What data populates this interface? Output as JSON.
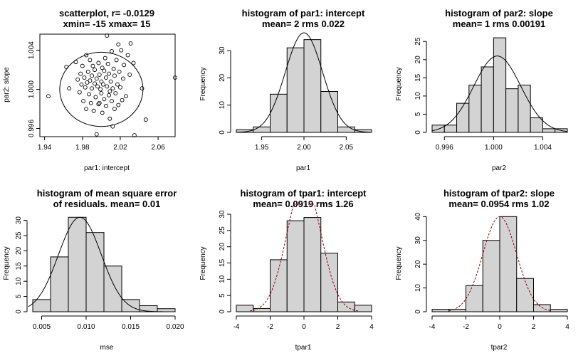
{
  "figure": {
    "panels": [
      {
        "title_lines": [
          "scatterplot, r= -0.0129",
          "xmin= -15  xmax= 15"
        ],
        "xlabel": "par1: intercept",
        "ylabel": "par2: slope"
      },
      {
        "title_lines": [
          "histogram of par1: intercept",
          "mean= 2  rms 0.022"
        ],
        "xlabel": "par1",
        "ylabel": "Frequency"
      },
      {
        "title_lines": [
          "histogram of par2: slope",
          "mean= 1  rms 0.00191"
        ],
        "xlabel": "par2",
        "ylabel": "Frequency"
      },
      {
        "title_lines": [
          "histogram of mean square error",
          "of residuals. mean= 0.01"
        ],
        "xlabel": "mse",
        "ylabel": "Frequency"
      },
      {
        "title_lines": [
          "histogram of tpar1: intercept",
          "mean= 0.0919  rms 1.26"
        ],
        "xlabel": "tpar1",
        "ylabel": "Frequency"
      },
      {
        "title_lines": [
          "histogram of tpar2: slope",
          "mean= 0.0954  rms 1.02"
        ],
        "xlabel": "tpar2",
        "ylabel": "Frequency"
      }
    ]
  },
  "chart_data": [
    {
      "type": "scatter",
      "title": "scatterplot, r= -0.0129\nxmin= -15  xmax= 15",
      "xlabel": "par1: intercept",
      "ylabel": "par2: slope",
      "xlim": [
        1.935,
        2.078
      ],
      "ylim": [
        0.99516,
        1.00565
      ],
      "xticks": [
        1.94,
        1.98,
        2.02,
        2.06
      ],
      "yticks": [
        0.996,
        1.0,
        1.004
      ],
      "ellipse": {
        "cx": 2.0,
        "cy": 1.0,
        "rx": 0.044,
        "ry": 0.0038
      },
      "points": {
        "x": [
          1.944,
          1.963,
          1.966,
          1.973,
          1.975,
          1.977,
          1.978,
          1.979,
          1.98,
          1.981,
          1.982,
          1.983,
          1.984,
          1.984,
          1.985,
          1.986,
          1.987,
          1.988,
          1.988,
          1.989,
          1.99,
          1.99,
          1.991,
          1.992,
          1.993,
          1.993,
          1.994,
          1.995,
          1.996,
          1.997,
          1.997,
          1.998,
          1.999,
          2.0,
          2.0,
          2.001,
          2.001,
          2.002,
          2.003,
          2.003,
          2.004,
          2.005,
          2.005,
          2.006,
          2.007,
          2.008,
          2.008,
          2.009,
          2.01,
          2.011,
          2.011,
          2.012,
          2.013,
          2.014,
          2.014,
          2.015,
          2.016,
          2.017,
          2.018,
          2.019,
          2.02,
          2.021,
          2.022,
          2.023,
          2.024,
          2.026,
          2.028,
          2.03,
          2.031,
          2.034,
          2.006,
          1.995,
          2.012,
          2.035,
          2.043,
          2.047,
          2.078,
          1.998,
          2.018,
          2.009
        ],
        "y": [
          0.9993,
          1.0023,
          1.0001,
          1.0028,
          1.001,
          0.9997,
          1.0016,
          1.0005,
          1.0024,
          0.9988,
          1.0012,
          1.0002,
          1.0035,
          0.998,
          1.0007,
          1.0018,
          0.9995,
          1.003,
          1.0009,
          0.9986,
          1.0014,
          1.0001,
          1.0024,
          0.9978,
          1.0006,
          1.002,
          0.9992,
          1.0011,
          1.0003,
          1.0027,
          0.9985,
          1.0015,
          1.0,
          1.0008,
          0.9996,
          1.0022,
          0.9976,
          1.0005,
          1.0019,
          0.999,
          1.0032,
          1.0012,
          0.9983,
          1.0003,
          1.0026,
          0.9994,
          1.0016,
          0.997,
          1.0008,
          1.0039,
          0.9988,
          1.0001,
          1.0021,
          0.998,
          1.0014,
          0.9996,
          1.003,
          1.0005,
          0.9984,
          1.0018,
          1.0002,
          1.004,
          0.9989,
          1.0011,
          1.0025,
          0.9993,
          1.0035,
          1.0015,
          1.0047,
          1.0027,
          1.0055,
          0.9954,
          0.9962,
          0.9953,
          1.0001,
          0.9969,
          1.0012,
          0.9986,
          1.0046,
          0.9998
        ]
      }
    },
    {
      "type": "bar",
      "title": "histogram of par1: intercept\nmean= 2  rms 0.022",
      "xlabel": "par1",
      "ylabel": "Frequency",
      "bin_edges": [
        1.92,
        1.94,
        1.96,
        1.98,
        2.0,
        2.02,
        2.04,
        2.06,
        2.08
      ],
      "values": [
        1,
        2,
        14,
        31,
        34,
        15,
        2,
        1
      ],
      "xlim": [
        1.92,
        2.08
      ],
      "ylim": [
        0,
        36
      ],
      "xticks": [
        1.95,
        2.0,
        2.05
      ],
      "xtick_labels": [
        "1.95",
        "2.00",
        "2.05"
      ],
      "yticks": [
        0,
        10,
        20,
        30
      ],
      "curve": {
        "kind": "normal",
        "mean": 2.0,
        "sd": 0.022,
        "peak": 36.5,
        "color": "#000000"
      }
    },
    {
      "type": "bar",
      "title": "histogram of par2: slope\nmean= 1  rms 0.00191",
      "xlabel": "par2",
      "ylabel": "Frequency",
      "bin_edges": [
        0.995,
        0.996,
        0.997,
        0.998,
        0.999,
        1.0,
        1.001,
        1.002,
        1.003,
        1.004,
        1.005,
        1.006
      ],
      "values": [
        2,
        2,
        8,
        13,
        18,
        26,
        12,
        13,
        4,
        1,
        1
      ],
      "xlim": [
        0.995,
        1.006
      ],
      "ylim": [
        0,
        27
      ],
      "xticks": [
        0.996,
        1.0,
        1.004
      ],
      "xtick_labels": [
        "0.996",
        "1.000",
        "1.004"
      ],
      "yticks": [
        0,
        5,
        10,
        15,
        20,
        25
      ],
      "curve": {
        "kind": "normal",
        "mean": 1.0003,
        "sd": 0.00191,
        "peak": 21,
        "color": "#000000"
      }
    },
    {
      "type": "bar",
      "title": "histogram of mean square error\nof residuals. mean= 0.01",
      "xlabel": "mse",
      "ylabel": "Frequency",
      "bin_edges": [
        0.004,
        0.006,
        0.008,
        0.01,
        0.012,
        0.014,
        0.016,
        0.018,
        0.02
      ],
      "values": [
        4,
        18,
        31,
        26,
        15,
        4,
        2,
        1
      ],
      "xlim": [
        0.004,
        0.02
      ],
      "ylim": [
        0,
        32
      ],
      "xticks": [
        0.005,
        0.01,
        0.015,
        0.02
      ],
      "xtick_labels": [
        "0.005",
        "0.010",
        "0.015",
        "0.020"
      ],
      "yticks": [
        0,
        5,
        10,
        15,
        20,
        25,
        30
      ],
      "curve": {
        "kind": "normal",
        "mean": 0.0093,
        "sd": 0.0024,
        "peak": 31,
        "color": "#000000",
        "xrange": [
          0.0035,
          0.02
        ]
      }
    },
    {
      "type": "bar",
      "title": "histogram of tpar1: intercept\nmean= 0.0919  rms 1.26",
      "xlabel": "tpar1",
      "ylabel": "Frequency",
      "bin_edges": [
        -4,
        -3,
        -2,
        -1,
        0,
        1,
        2,
        3,
        4
      ],
      "values": [
        2,
        1,
        16,
        28,
        29,
        18,
        3,
        2
      ],
      "xlim": [
        -4,
        4
      ],
      "ylim": [
        0,
        30
      ],
      "xticks": [
        -4,
        -2,
        0,
        2,
        4
      ],
      "xtick_labels": [
        "-4",
        "-2",
        "0",
        "2",
        "4"
      ],
      "yticks": [
        0,
        5,
        10,
        15,
        20,
        25,
        30
      ],
      "curve": {
        "kind": "normal",
        "mean": 0.0,
        "sd": 1.0,
        "peak": 40,
        "color": "#8b0000",
        "dashed": true,
        "xrange": [
          -3.2,
          3.2
        ]
      }
    },
    {
      "type": "bar",
      "title": "histogram of tpar2: slope\nmean= 0.0954  rms 1.02",
      "xlabel": "tpar2",
      "ylabel": "Frequency",
      "bin_edges": [
        -4,
        -3,
        -2,
        -1,
        0,
        1,
        2,
        3,
        4
      ],
      "values": [
        1,
        1,
        11,
        30,
        40,
        14,
        3,
        1
      ],
      "xlim": [
        -4,
        4
      ],
      "ylim": [
        0,
        41
      ],
      "xticks": [
        -4,
        -2,
        0,
        2,
        4
      ],
      "xtick_labels": [
        "-4",
        "-2",
        "0",
        "2",
        "4"
      ],
      "yticks": [
        0,
        10,
        20,
        30,
        40
      ],
      "curve": {
        "kind": "normal",
        "mean": 0.0,
        "sd": 1.0,
        "peak": 40,
        "color": "#8b0000",
        "dashed": true,
        "xrange": [
          -3.0,
          3.0
        ]
      }
    }
  ]
}
